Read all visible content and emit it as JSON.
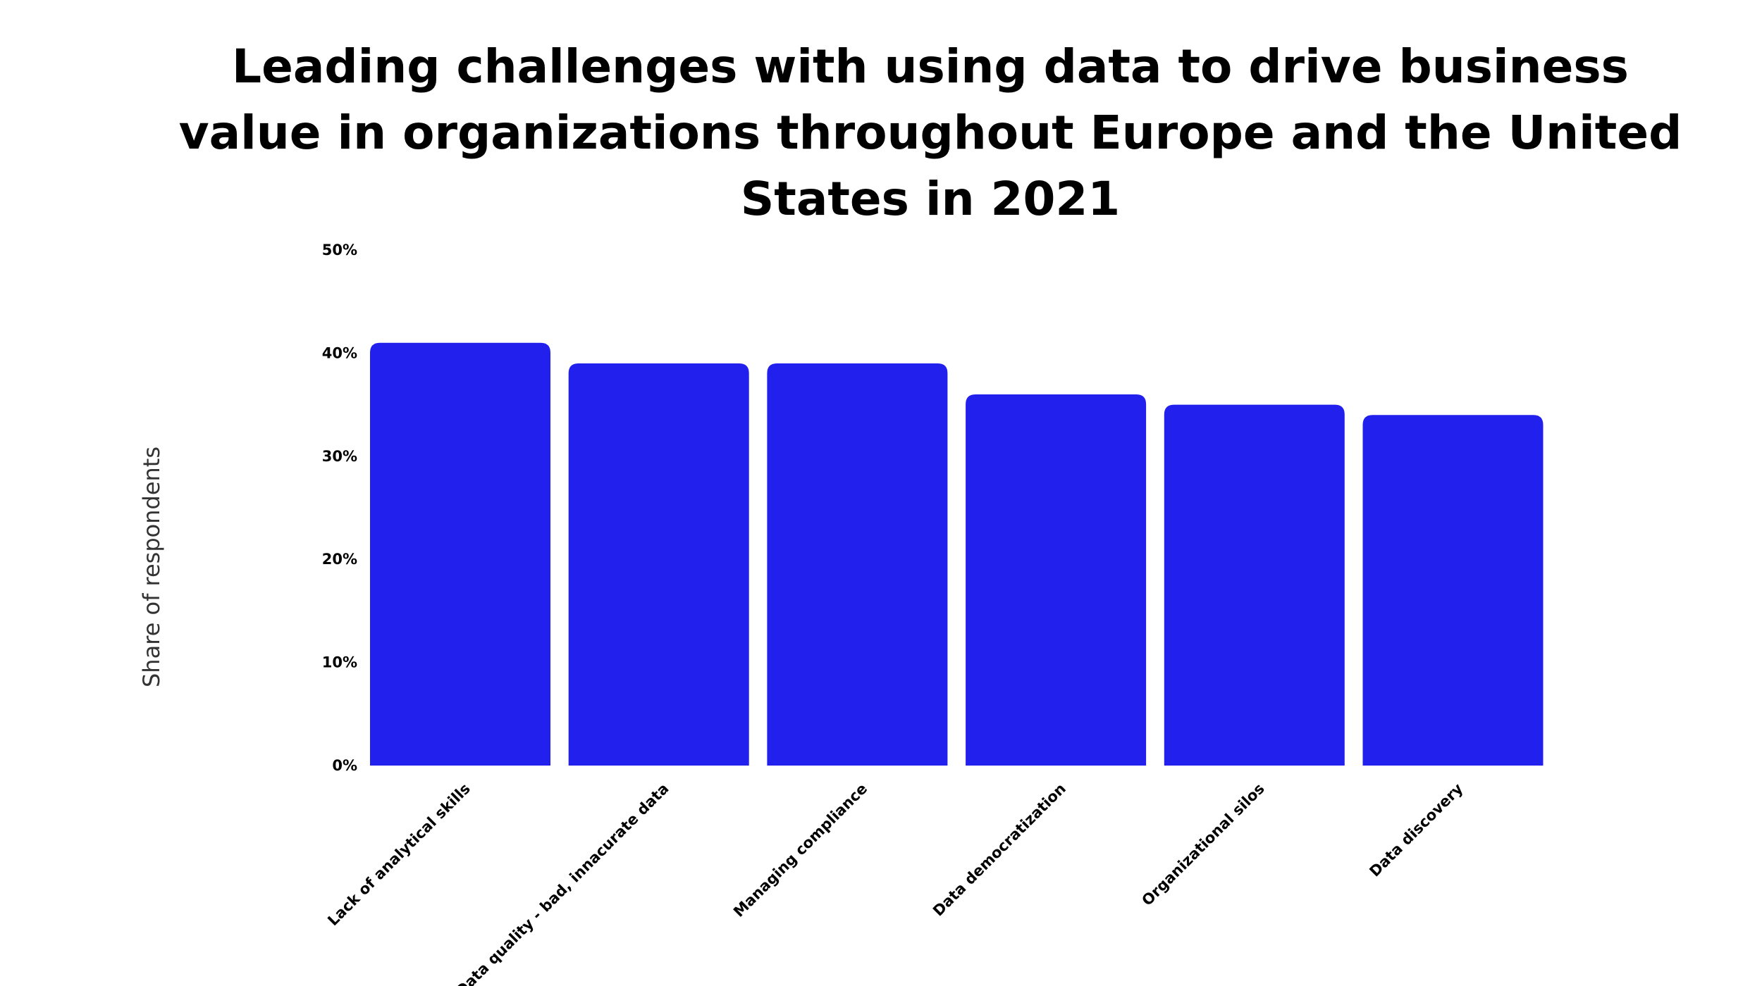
{
  "chart_data": {
    "type": "bar",
    "title": "Leading challenges with using data to drive business value in organizations throughout Europe and the United States in 2021",
    "xlabel": "",
    "ylabel": "Share of respondents",
    "categories": [
      "Lack of analytical skills",
      "Data quality - bad, innacurate data",
      "Managing compliance",
      "Data democratization",
      "Organizational silos",
      "Data discovery"
    ],
    "values": [
      41,
      39,
      39,
      36,
      35,
      34
    ],
    "ylim": [
      0,
      50
    ],
    "yticks": [
      0,
      10,
      20,
      30,
      40,
      50
    ],
    "ytick_labels": [
      "0%",
      "10%",
      "20%",
      "30%",
      "40%",
      "50%"
    ],
    "grid": false,
    "legend": "none",
    "colors": {
      "bar": "#2220EC",
      "text": "#000000",
      "axis_title": "#333333"
    }
  }
}
